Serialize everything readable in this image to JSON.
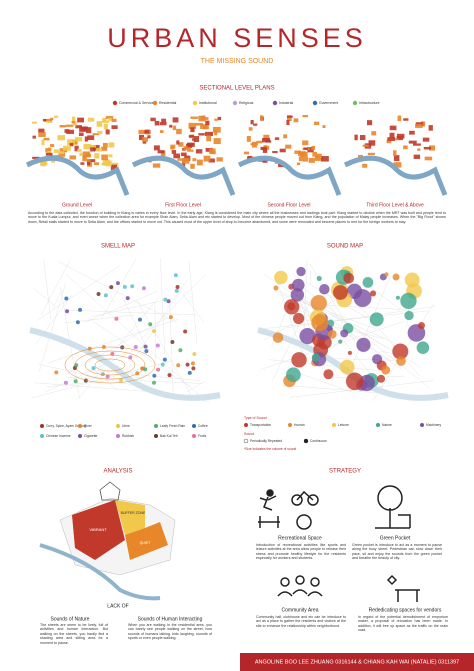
{
  "header": {
    "title": "URBAN SENSES",
    "subtitle": "THE MISSING SOUND"
  },
  "plans": {
    "title": "SECTIONAL LEVEL PLANS",
    "legend": [
      {
        "label": "Commercial & Services",
        "color": "#c0392b"
      },
      {
        "label": "Residential",
        "color": "#e8862a"
      },
      {
        "label": "Institutional",
        "color": "#f2c84b"
      },
      {
        "label": "Religious",
        "color": "#b9a0d8"
      },
      {
        "label": "Industrial",
        "color": "#7b4fa0"
      },
      {
        "label": "Government",
        "color": "#2f6db5"
      },
      {
        "label": "Infrastructure",
        "color": "#6fbf5a"
      }
    ],
    "levels": [
      "Ground Level",
      "First Floor Level",
      "Second Floor Level",
      "Third Floor Level & Above"
    ],
    "text": "According to the data collected, the function of building in Klang is varies in every floor level. In the early age, Klang is considered the main city where all the businesses and tradings took part. Klang started to decline when the MRT was built and people tend to move to the Kuala Lumpur, and even worse when the collection area for example Shah Alam, Setia Alam and etc started to develop. Most of the chinese people moved out from Klang, and the population of Malay people increases. When the \"Big Flood\" shown down, Retail stalls started to move to Setia Alam, and the offices started to move out. This caused most of the upper level of shop to become abandoned, and some were renovated and become places to rent for the foreign workers to stay."
  },
  "smell_map": {
    "title": "SMELL MAP",
    "legend": [
      {
        "label": "Curry, Spice, Ayam Goreng",
        "color": "#a0342a"
      },
      {
        "label": "River",
        "color": "#e08a2e"
      },
      {
        "label": "Urine",
        "color": "#e6c84a"
      },
      {
        "label": "Leafy Fresh Rain",
        "color": "#4fae6a"
      },
      {
        "label": "Coffee",
        "color": "#2f6db5"
      },
      {
        "label": "Chinese Incense",
        "color": "#5fc0d0"
      },
      {
        "label": "Cigarette",
        "color": "#7b4fa0"
      },
      {
        "label": "Rubbish",
        "color": "#c77ad0"
      },
      {
        "label": "Bak Kut Teh",
        "color": "#6a3a2a"
      },
      {
        "label": "Fruits",
        "color": "#e86f8e"
      }
    ]
  },
  "sound_map": {
    "title": "SOUND MAP",
    "type_title": "Type of Sound",
    "types": [
      {
        "label": "Transportation",
        "color": "#c0392b"
      },
      {
        "label": "Human",
        "color": "#e8862a"
      },
      {
        "label": "Leisure",
        "color": "#f2c84b"
      },
      {
        "label": "Nature",
        "color": "#3fa88e"
      },
      {
        "label": "Machinery",
        "color": "#7b4fa0"
      }
    ],
    "sound_title": "Sound",
    "patterns": [
      "Periodically Repeated",
      "Continuous"
    ],
    "note": "*Size indicates the volume of sound"
  },
  "analysis": {
    "title": "ANALYSIS",
    "zones": [
      "VIBRANT",
      "BUFFER ZONE",
      "QUIET"
    ],
    "lack": "LACK OF",
    "items": [
      {
        "label": "Sounds of Nature",
        "text": "The streets are seem to be lively, full of activities and human interaction. But walking on the streets, you hardly find a shading area and sitting area for a moment to pause."
      },
      {
        "label": "Sounds of Human Interacting",
        "text": "When you are walking in the residential area, you can barely see people walking on the street, how sounds of humans talking, kids laughing, sounds of sports or even people walking."
      }
    ]
  },
  "strategy": {
    "title": "STRATEGY",
    "items": [
      {
        "label": "Recreational Space",
        "text": "Introduction of recreational activities like sports and leisure activities at the area allow people to release their stress and promote healthy lifestyle for the residents especially for workers and students."
      },
      {
        "label": "Green Pocket",
        "text": "Green pocket is introduce to act as a moment to pause along the busy street. Pedestrian can slow down their pace, sit and enjoy the sounds from the green pocket and breathe the beauty of city."
      },
      {
        "label": "Community Area",
        "text": "Community hall, clubhouse and etc can be introduce to act as a place to gather the residents and visitors at the site to enhance the relationship within neighborhood."
      },
      {
        "label": "Rededicating spaces for vendors",
        "text": "In regard of the potential demolishment of emporium maker, a proposal of relocation has been made. In addition, it will free up space as the traffic on the main road."
      }
    ]
  },
  "footer": {
    "text": "ANGOLINE BOO LEE ZHUANG  0316144  &  CHIANG KAH WAI (NATALIE)  0311397"
  }
}
